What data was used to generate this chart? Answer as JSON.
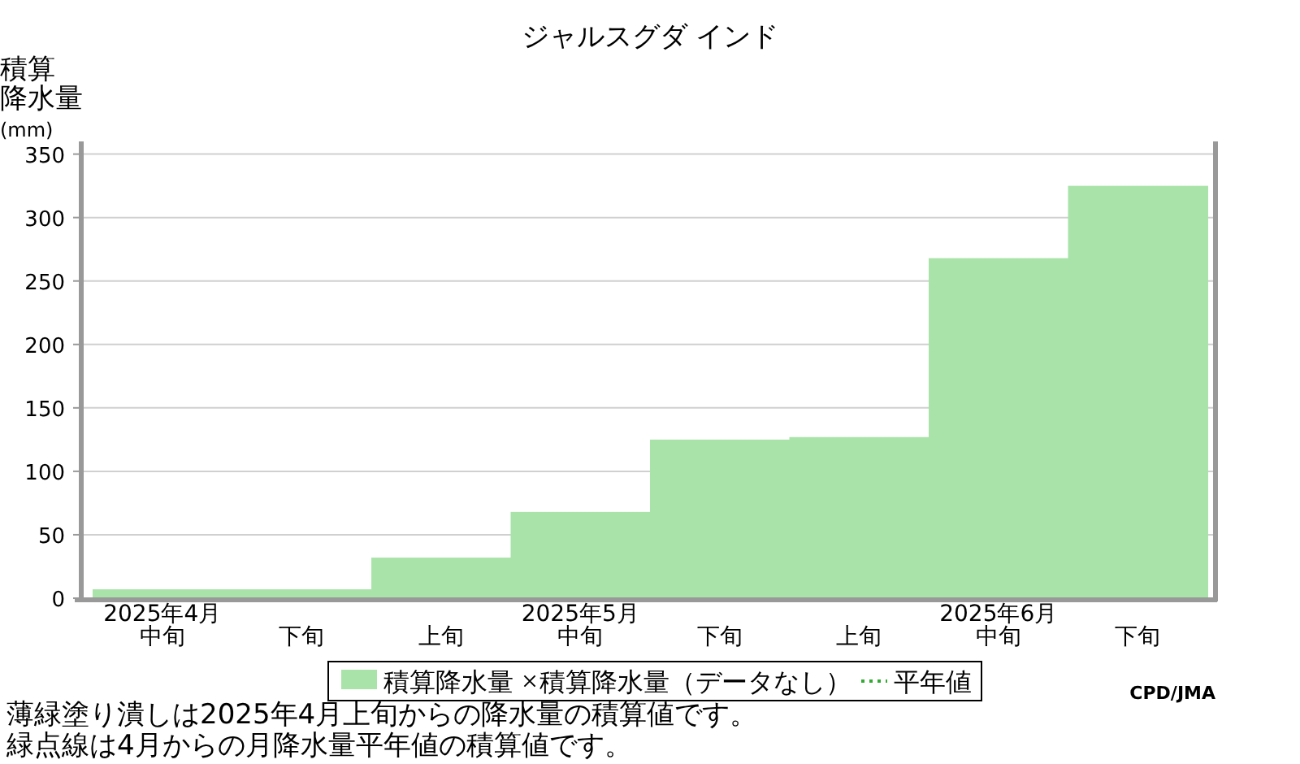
{
  "chart_data": {
    "type": "bar",
    "title": "ジャルスグダ インド",
    "ylabel": "積算降水量(mm)",
    "categories": [
      "2025年4月中旬",
      "下旬",
      "上旬",
      "2025年5月中旬",
      "下旬",
      "上旬",
      "2025年6月中旬",
      "下旬"
    ],
    "series": [
      {
        "name": "積算降水量",
        "color": "#aae3aa",
        "values": [
          7,
          7,
          32,
          68,
          125,
          127,
          268,
          325
        ]
      },
      {
        "name": "積算降水量（データなし）",
        "type": "scatter",
        "marker": "cross",
        "color": "#000000",
        "values": [
          null,
          null,
          null,
          null,
          null,
          null,
          null,
          null
        ]
      },
      {
        "name": "平年値",
        "type": "line",
        "line_style": "dotted",
        "color": "#33aa33",
        "values": [
          null,
          null,
          null,
          null,
          null,
          null,
          null,
          null
        ]
      }
    ],
    "ylim": [
      0,
      360
    ],
    "yticks": [
      0,
      50,
      100,
      150,
      200,
      250,
      300,
      350
    ],
    "grid": "y",
    "legend": "bottom",
    "annotations": [
      "CPD/JMA",
      "薄緑塗り潰しは2025年4月上旬からの降水量の積算値です。",
      "緑点線は4月からの月降水量平年値の積算値です。"
    ]
  }
}
